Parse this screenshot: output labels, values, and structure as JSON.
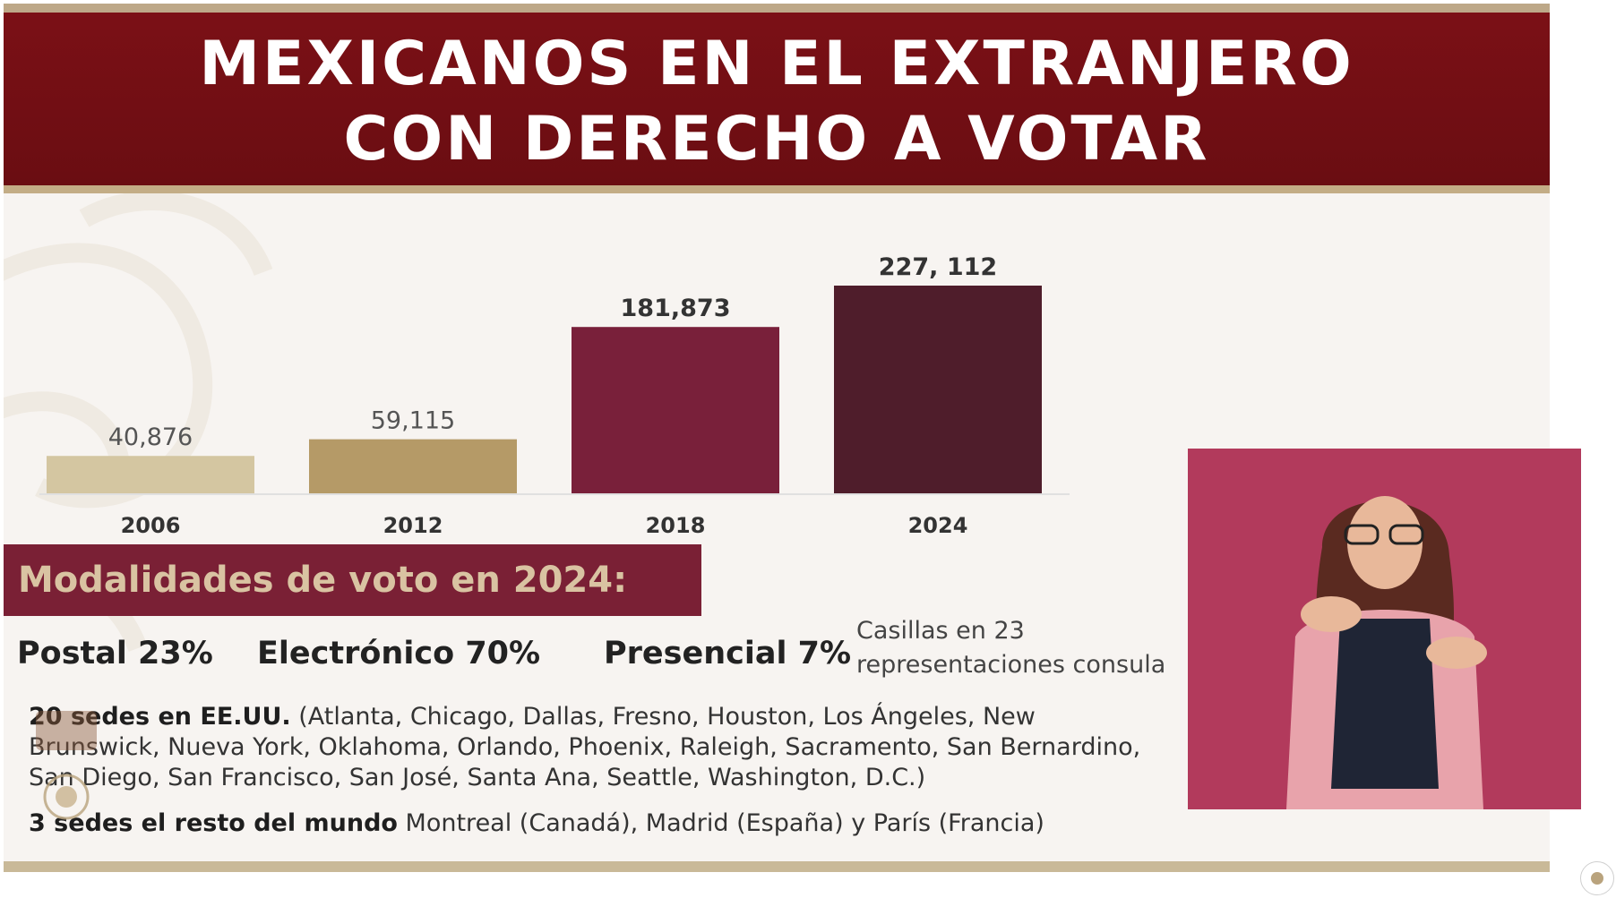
{
  "title": {
    "line1": "MEXICANOS EN EL EXTRANJERO",
    "line2": "CON DERECHO A VOTAR"
  },
  "colors": {
    "banner": "#7b1016",
    "gold_light": "#d4c6a1",
    "gold_dark": "#b59a67",
    "wine": "#79203a",
    "wine_dark": "#4f1d2b",
    "interpreter_bg": "#b23a5c"
  },
  "chart_data": {
    "type": "bar",
    "categories": [
      "2006",
      "2012",
      "2018",
      "2024"
    ],
    "values": [
      40876,
      59115,
      181873,
      227112
    ],
    "value_labels": [
      "40,876",
      "59,115",
      "181,873",
      "227, 112"
    ],
    "bar_colors": [
      "#d4c6a1",
      "#b59a67",
      "#79203a",
      "#4f1d2b"
    ],
    "title": "",
    "xlabel": "",
    "ylabel": "",
    "ylim": [
      0,
      227112
    ],
    "grid": false,
    "legend": "none"
  },
  "modalidades": {
    "heading": "Modalidades de voto en 2024:",
    "postal": "Postal 23%",
    "electronico": "Electrónico 70%",
    "presencial": "Presencial 7%",
    "casillas_line1": "Casillas en 23",
    "casillas_line2": "representaciones consula",
    "sedes_eeuu_bold": "20 sedes en EE.UU.",
    "sedes_eeuu_list": "(Atlanta, Chicago, Dallas, Fresno, Houston, Los Ángeles, New Brunswick, Nueva York, Oklahoma, Orlando, Phoenix, Raleigh, Sacramento, San Bernardino, San Diego, San Francisco, San José, Santa Ana, Seattle, Washington, D.C.)",
    "sedes_mundo_bold": "3 sedes el resto del mundo",
    "sedes_mundo_list": "Montreal (Canadá), Madrid (España) y París (Francia)"
  },
  "icons": {
    "background_motif": "aztec-pattern",
    "corner_logo": "gobierno-de-mexico-seal",
    "interpreter": "sign-language-interpreter"
  }
}
